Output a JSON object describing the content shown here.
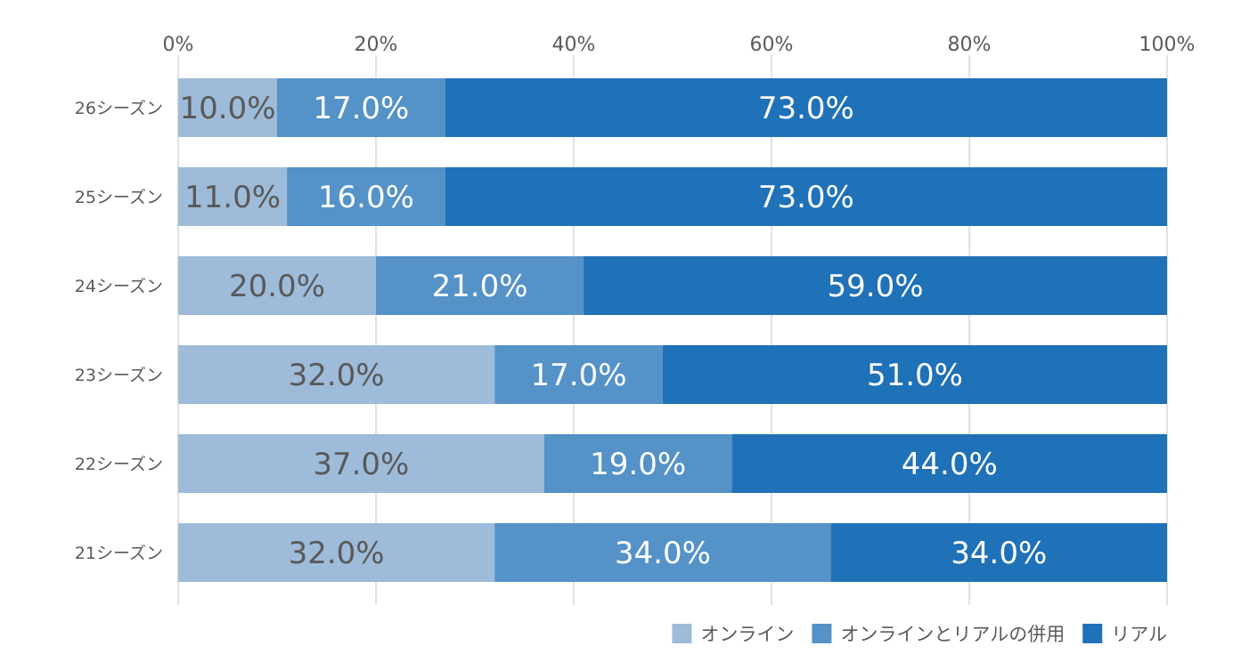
{
  "chart_data": {
    "type": "bar",
    "orientation": "horizontal",
    "stacked": true,
    "title": "",
    "xlabel": "",
    "ylabel": "",
    "xlim": [
      0,
      100
    ],
    "x_ticks": [
      "0%",
      "20%",
      "40%",
      "60%",
      "80%",
      "100%"
    ],
    "categories": [
      "26シーズン",
      "25シーズン",
      "24シーズン",
      "23シーズン",
      "22シーズン",
      "21シーズン"
    ],
    "series": [
      {
        "name": "オンライン",
        "color": "#9ebbda",
        "label_color": "#595959",
        "values": [
          10.0,
          11.0,
          20.0,
          32.0,
          37.0,
          32.0
        ],
        "labels": [
          "10.0%",
          "11.0%",
          "20.0%",
          "32.0%",
          "37.0%",
          "32.0%"
        ]
      },
      {
        "name": "オンラインとリアルの併用",
        "color": "#5492c8",
        "label_color": "#ffffff",
        "values": [
          17.0,
          16.0,
          21.0,
          17.0,
          19.0,
          34.0
        ],
        "labels": [
          "17.0%",
          "16.0%",
          "21.0%",
          "17.0%",
          "19.0%",
          "34.0%"
        ]
      },
      {
        "name": "リアル",
        "color": "#1f71b8",
        "label_color": "#ffffff",
        "values": [
          73.0,
          73.0,
          59.0,
          51.0,
          44.0,
          34.0
        ],
        "labels": [
          "73.0%",
          "73.0%",
          "59.0%",
          "51.0%",
          "44.0%",
          "34.0%"
        ]
      }
    ],
    "grid": true,
    "legend_position": "bottom-right"
  }
}
